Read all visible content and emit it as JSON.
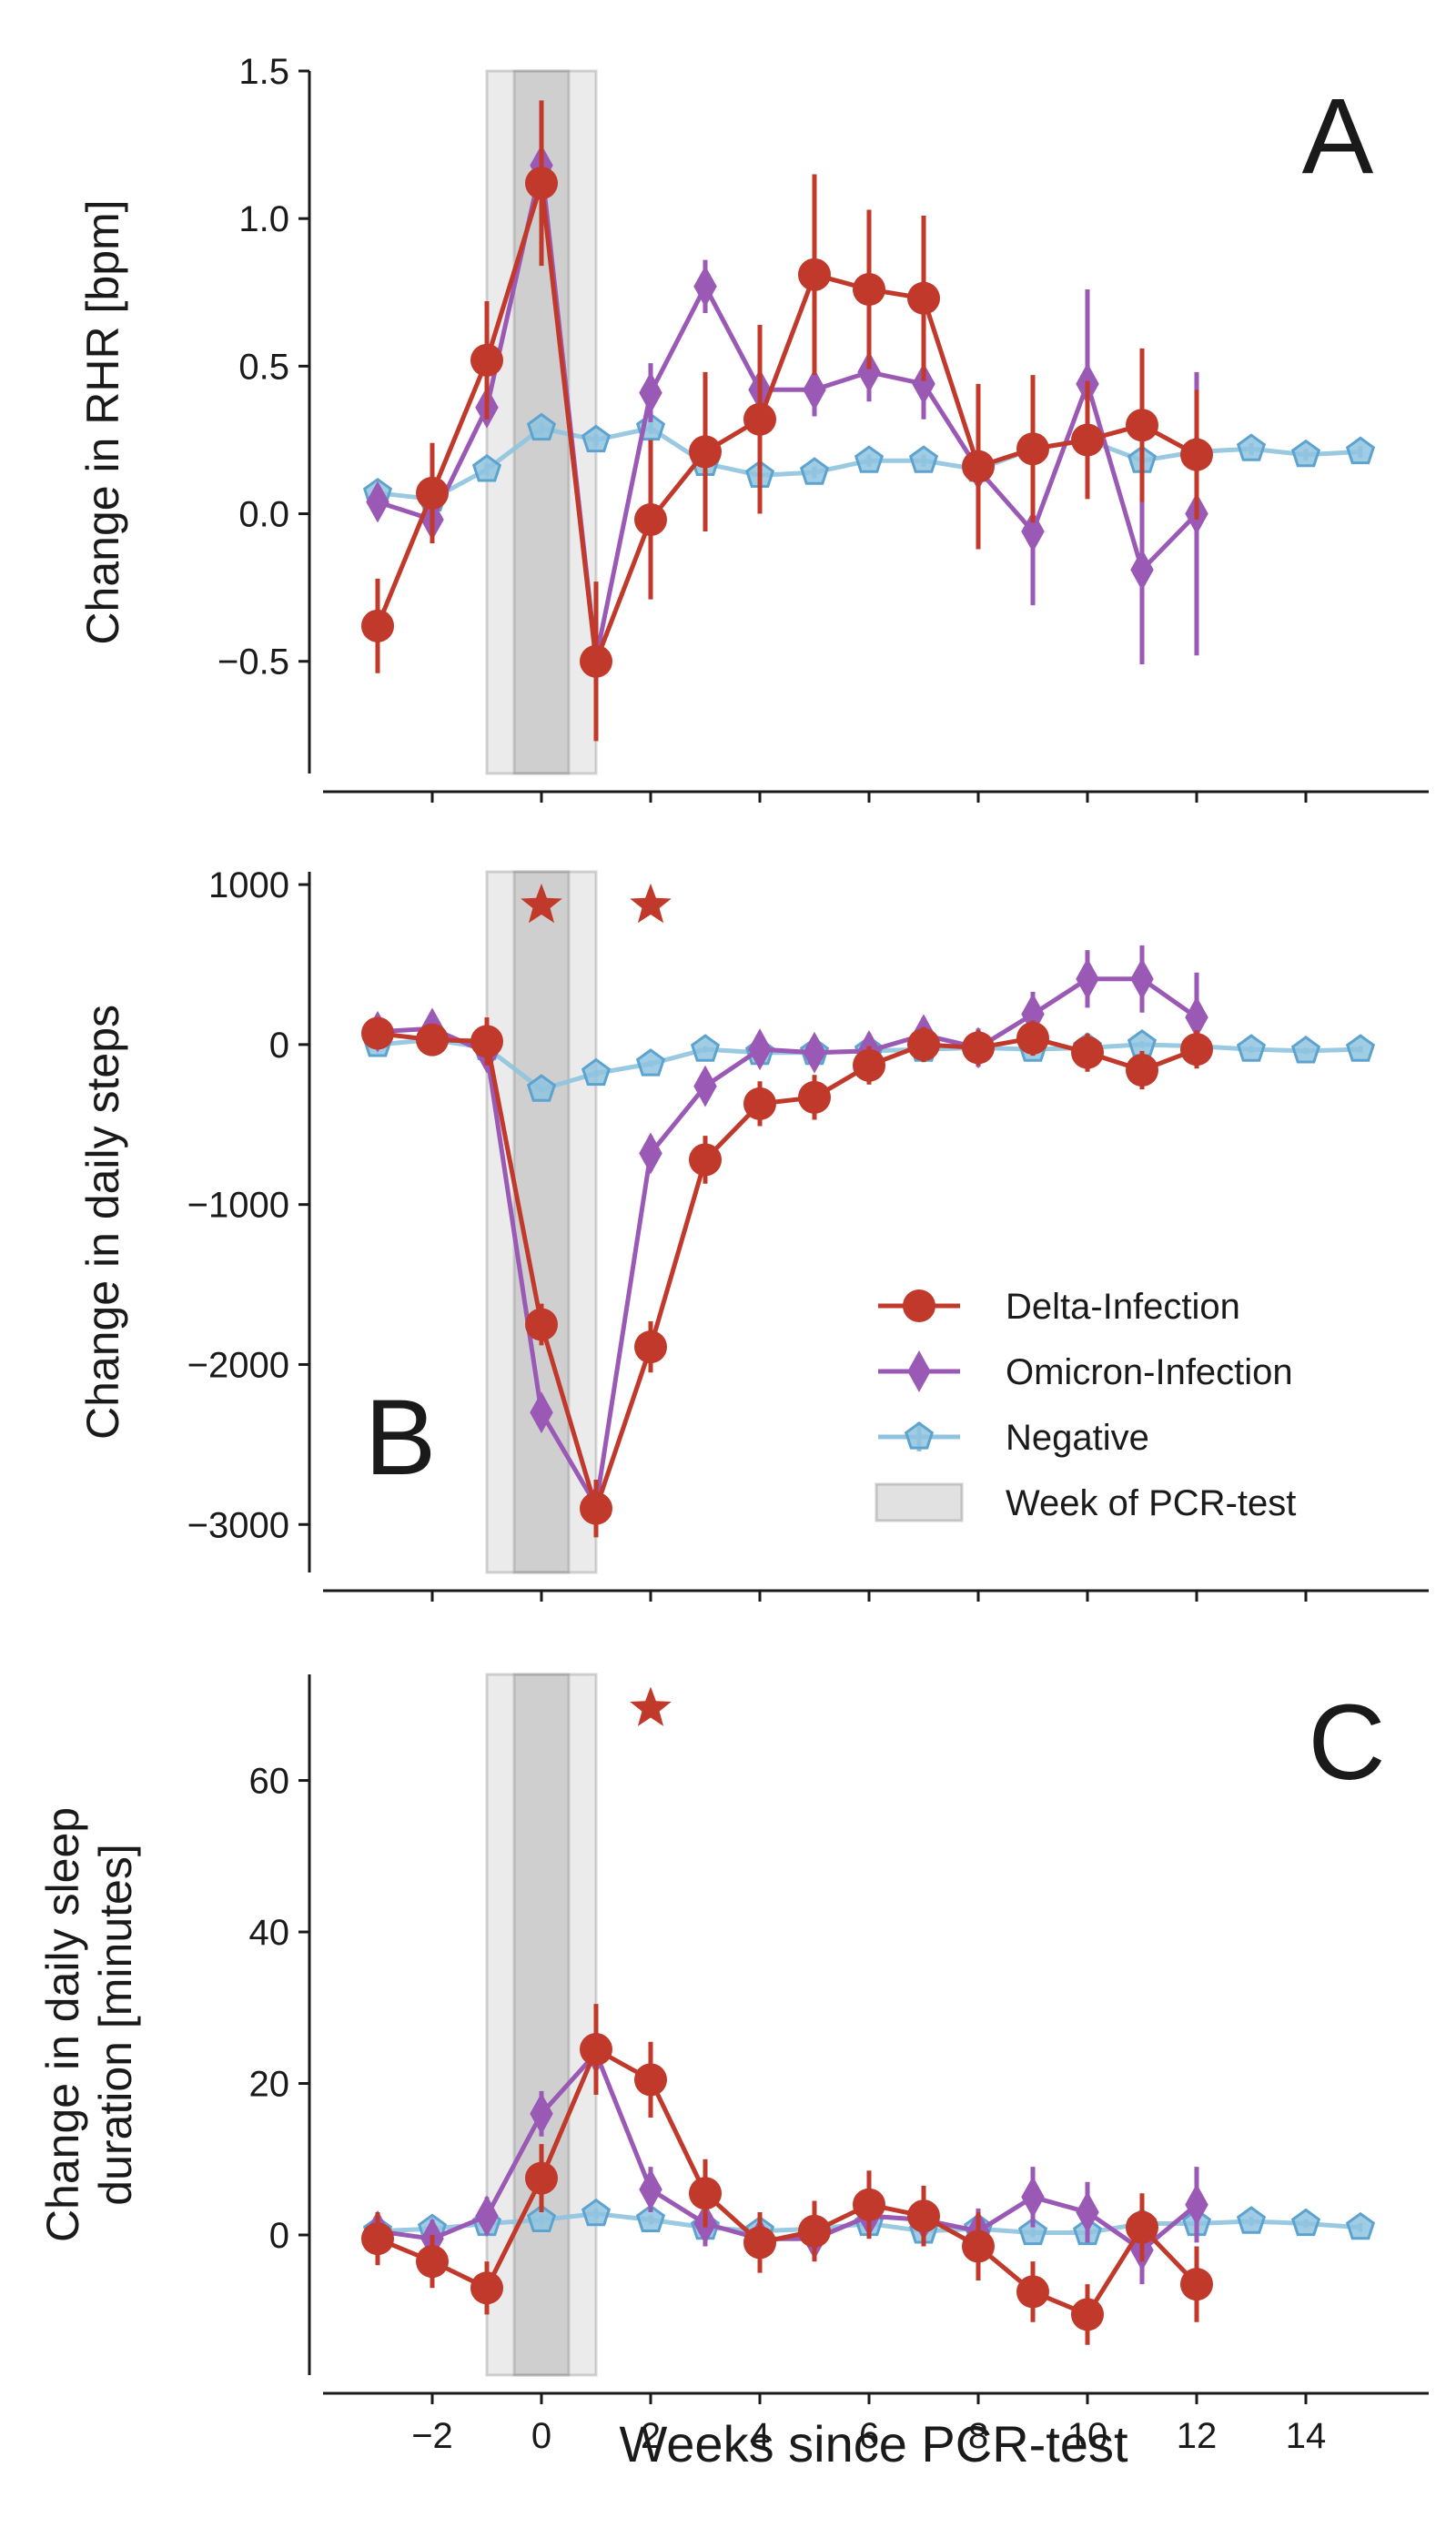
{
  "figure": {
    "xlabel": "Weeks since PCR-test"
  },
  "colors": {
    "delta": "#c0392b",
    "omicron": "#9b59b6",
    "negative": "#8fc3df",
    "shade": "#888888"
  },
  "legend": {
    "placement": "lower-right of panel B",
    "entries": [
      "Delta-Infection",
      "Omicron-Infection",
      "Negative",
      "Week of PCR-test"
    ]
  },
  "chart_data": [
    {
      "type": "line",
      "panel_label": "A",
      "ylabel": "Change in RHR [bpm]",
      "xlim": [
        -4,
        16
      ],
      "ylim": [
        -0.88,
        1.5
      ],
      "xticks": [
        -2,
        0,
        2,
        4,
        6,
        8,
        10,
        12,
        14
      ],
      "yticks": [
        -0.5,
        0.0,
        0.5,
        1.0,
        1.5
      ],
      "ytick_labels": [
        "−0.5",
        "0.0",
        "0.5",
        "1.0",
        "1.5"
      ],
      "shaded_spans": [
        [
          -1,
          1
        ],
        [
          -0.5,
          0.5
        ]
      ],
      "stars": [],
      "series": [
        {
          "name": "Negative",
          "marker": "pentagon",
          "x": [
            -3,
            -2,
            -1,
            0,
            1,
            2,
            3,
            4,
            5,
            6,
            7,
            8,
            9,
            10,
            11,
            12,
            13,
            14,
            15
          ],
          "y": [
            0.07,
            0.05,
            0.15,
            0.29,
            0.25,
            0.29,
            0.17,
            0.13,
            0.14,
            0.18,
            0.18,
            0.15,
            0.22,
            0.25,
            0.18,
            0.21,
            0.22,
            0.2,
            0.21
          ],
          "err": [
            0.02,
            0.02,
            0.02,
            0.02,
            0.02,
            0.02,
            0.02,
            0.02,
            0.02,
            0.02,
            0.02,
            0.02,
            0.02,
            0.02,
            0.02,
            0.02,
            0.02,
            0.02,
            0.02
          ]
        },
        {
          "name": "Omicron-Infection",
          "marker": "diamond",
          "x": [
            -3,
            -2,
            -1,
            0,
            1,
            2,
            3,
            4,
            5,
            6,
            7,
            8,
            9,
            10,
            11,
            12
          ],
          "y": [
            0.04,
            -0.02,
            0.36,
            1.18,
            -0.49,
            0.41,
            0.77,
            0.42,
            0.42,
            0.48,
            0.44,
            0.15,
            -0.06,
            0.44,
            -0.19,
            0.0
          ],
          "err": [
            0.05,
            0.05,
            0.06,
            0.07,
            0.07,
            0.1,
            0.09,
            0.1,
            0.09,
            0.1,
            0.12,
            0.15,
            0.25,
            0.32,
            0.32,
            0.48
          ]
        },
        {
          "name": "Delta-Infection",
          "marker": "circle",
          "x": [
            -3,
            -2,
            -1,
            0,
            1,
            2,
            3,
            4,
            5,
            6,
            7,
            8,
            9,
            10,
            11,
            12
          ],
          "y": [
            -0.38,
            0.07,
            0.52,
            1.12,
            -0.5,
            -0.02,
            0.21,
            0.32,
            0.81,
            0.76,
            0.73,
            0.16,
            0.22,
            0.25,
            0.3,
            0.2
          ],
          "err": [
            0.16,
            0.17,
            0.2,
            0.28,
            0.27,
            0.27,
            0.27,
            0.32,
            0.34,
            0.27,
            0.28,
            0.28,
            0.25,
            0.2,
            0.26,
            0.22
          ]
        }
      ]
    },
    {
      "type": "line",
      "panel_label": "B",
      "ylabel": "Change in daily steps",
      "xlim": [
        -4,
        16
      ],
      "ylim": [
        -3300,
        1080
      ],
      "xticks": [
        -2,
        0,
        2,
        4,
        6,
        8,
        10,
        12,
        14
      ],
      "yticks": [
        -3000,
        -2000,
        -1000,
        0,
        1000
      ],
      "ytick_labels": [
        "−3000",
        "−2000",
        "−1000",
        "0",
        "1000"
      ],
      "shaded_spans": [
        [
          -1,
          1
        ],
        [
          -0.5,
          0.5
        ]
      ],
      "stars": [
        {
          "x": 0,
          "y": 870
        },
        {
          "x": 2,
          "y": 870
        }
      ],
      "series": [
        {
          "name": "Negative",
          "marker": "pentagon",
          "x": [
            -3,
            -2,
            -1,
            0,
            1,
            2,
            3,
            4,
            5,
            6,
            7,
            8,
            9,
            10,
            11,
            12,
            13,
            14,
            15
          ],
          "y": [
            0,
            30,
            -20,
            -280,
            -180,
            -120,
            -30,
            -50,
            -50,
            -40,
            -30,
            -20,
            -30,
            -20,
            0,
            -10,
            -30,
            -40,
            -30
          ],
          "err": [
            20,
            20,
            20,
            20,
            20,
            20,
            20,
            20,
            20,
            20,
            20,
            20,
            20,
            20,
            20,
            20,
            20,
            20,
            20
          ]
        },
        {
          "name": "Omicron-Infection",
          "marker": "diamond",
          "x": [
            -3,
            -2,
            -1,
            0,
            1,
            2,
            3,
            4,
            5,
            6,
            7,
            8,
            9,
            10,
            11,
            12
          ],
          "y": [
            80,
            100,
            -50,
            -2300,
            -2880,
            -680,
            -260,
            -30,
            -50,
            -40,
            60,
            -20,
            190,
            410,
            410,
            170
          ],
          "err": [
            60,
            60,
            70,
            100,
            120,
            110,
            100,
            100,
            100,
            110,
            110,
            120,
            140,
            180,
            210,
            280
          ]
        },
        {
          "name": "Delta-Infection",
          "marker": "circle",
          "x": [
            -3,
            -2,
            -1,
            0,
            1,
            2,
            3,
            4,
            5,
            6,
            7,
            8,
            9,
            10,
            11,
            12
          ],
          "y": [
            70,
            30,
            20,
            -1750,
            -2900,
            -1890,
            -720,
            -370,
            -330,
            -130,
            0,
            -20,
            40,
            -50,
            -160,
            -30
          ],
          "err": [
            80,
            80,
            150,
            130,
            180,
            160,
            150,
            140,
            140,
            120,
            110,
            110,
            110,
            120,
            120,
            120
          ]
        }
      ]
    },
    {
      "type": "line",
      "panel_label": "C",
      "ylabel": "Change in daily sleep\nduration [minutes]",
      "xlabel": "Weeks since PCR-test",
      "xlim": [
        -4,
        16
      ],
      "ylim": [
        -18.5,
        74
      ],
      "xticks": [
        -2,
        0,
        2,
        4,
        6,
        8,
        10,
        12,
        14
      ],
      "xtick_labels": [
        "−2",
        "0",
        "2",
        "4",
        "6",
        "8",
        "10",
        "12",
        "14"
      ],
      "yticks": [
        0,
        20,
        40,
        60
      ],
      "ytick_labels": [
        "0",
        "20",
        "40",
        "60"
      ],
      "shaded_spans": [
        [
          -1,
          1
        ],
        [
          -0.5,
          0.5
        ]
      ],
      "stars": [
        {
          "x": 2,
          "y": 69.5
        }
      ],
      "series": [
        {
          "name": "Negative",
          "marker": "pentagon",
          "x": [
            -3,
            -2,
            -1,
            0,
            1,
            2,
            3,
            4,
            5,
            6,
            7,
            8,
            9,
            10,
            11,
            12,
            13,
            14,
            15
          ],
          "y": [
            0.5,
            0.8,
            1.5,
            2.0,
            2.8,
            2.0,
            1.0,
            0.5,
            0.8,
            1.5,
            0.5,
            0.8,
            0.3,
            0.3,
            1.5,
            1.5,
            1.8,
            1.5,
            1.0
          ],
          "err": [
            0.6,
            0.6,
            0.6,
            0.6,
            0.6,
            0.6,
            0.6,
            0.6,
            0.6,
            0.6,
            0.6,
            0.6,
            0.6,
            0.6,
            0.6,
            0.6,
            0.6,
            0.6,
            0.6
          ]
        },
        {
          "name": "Omicron-Infection",
          "marker": "diamond",
          "x": [
            -3,
            -2,
            -1,
            0,
            1,
            2,
            3,
            4,
            5,
            6,
            7,
            8,
            9,
            10,
            11,
            12
          ],
          "y": [
            0.5,
            -0.5,
            2.5,
            16.0,
            24.0,
            6.0,
            1.5,
            -0.5,
            -0.5,
            2.5,
            2.0,
            0.5,
            5.0,
            3.0,
            -2.0,
            4.0
          ],
          "err": [
            2.5,
            2.5,
            2.5,
            3.0,
            3.5,
            3.0,
            3.0,
            3.0,
            3.0,
            3.0,
            3.0,
            3.0,
            4.0,
            4.0,
            4.5,
            5.0
          ]
        },
        {
          "name": "Delta-Infection",
          "marker": "circle",
          "x": [
            -3,
            -2,
            -1,
            0,
            1,
            2,
            3,
            4,
            5,
            6,
            7,
            8,
            9,
            10,
            11,
            12
          ],
          "y": [
            -0.5,
            -3.5,
            -7.0,
            7.5,
            24.5,
            20.5,
            5.5,
            -1.0,
            0.5,
            4.0,
            2.5,
            -1.5,
            -7.5,
            -10.5,
            1.0,
            -6.5
          ],
          "err": [
            3.5,
            3.5,
            3.5,
            4.5,
            6.0,
            5.0,
            4.5,
            4.0,
            4.0,
            4.5,
            4.0,
            4.5,
            4.0,
            4.0,
            4.5,
            5.0
          ]
        }
      ]
    }
  ]
}
